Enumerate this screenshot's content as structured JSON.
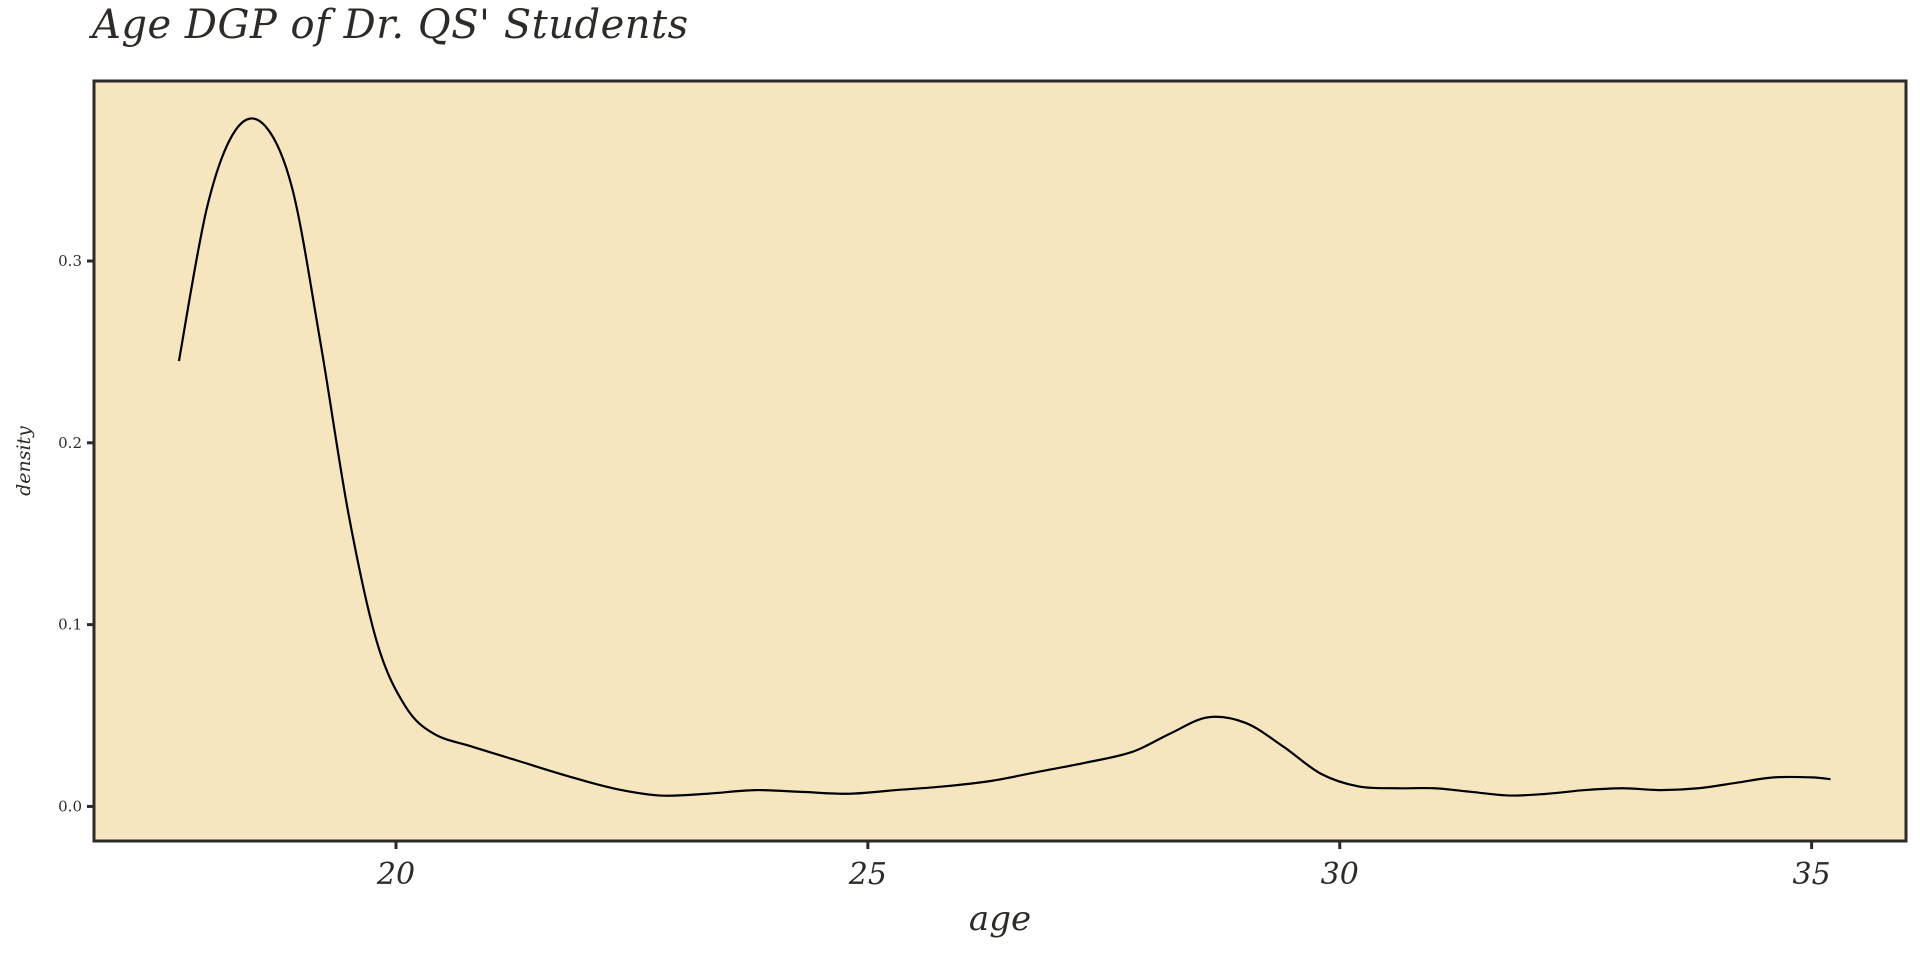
{
  "chart_data": {
    "type": "area",
    "title": "Age DGP of Dr. QS' Students",
    "xlabel": "age",
    "ylabel": "density",
    "xlim": [
      16.8,
      36.0
    ],
    "ylim": [
      -0.019,
      0.399
    ],
    "x_ticks": [
      20,
      25,
      30,
      35
    ],
    "x_tick_labels": [
      "20",
      "25",
      "30",
      "35"
    ],
    "y_ticks": [
      0.0,
      0.1,
      0.2,
      0.3
    ],
    "y_tick_labels": [
      "0.0",
      "0.1",
      "0.2",
      "0.3"
    ],
    "grid": false,
    "legend": "none",
    "colors": {
      "panel_background": "#f6e6c0",
      "panel_border": "#2e2a27",
      "line": "#000000",
      "text": "#2e2a27"
    },
    "series": [
      {
        "x": [
          17.7,
          18.0,
          18.3,
          18.6,
          18.9,
          19.2,
          19.5,
          19.8,
          20.1,
          20.4,
          20.8,
          21.3,
          21.8,
          22.3,
          22.8,
          23.3,
          23.8,
          24.3,
          24.8,
          25.3,
          25.8,
          26.3,
          26.8,
          27.3,
          27.8,
          28.2,
          28.6,
          29.0,
          29.4,
          29.8,
          30.2,
          30.6,
          31.0,
          31.4,
          31.8,
          32.2,
          32.6,
          33.0,
          33.4,
          33.8,
          34.2,
          34.6,
          35.0,
          35.2
        ],
        "y": [
          0.245,
          0.33,
          0.372,
          0.375,
          0.34,
          0.255,
          0.16,
          0.09,
          0.055,
          0.04,
          0.033,
          0.025,
          0.017,
          0.01,
          0.006,
          0.007,
          0.009,
          0.008,
          0.007,
          0.009,
          0.011,
          0.014,
          0.019,
          0.024,
          0.03,
          0.04,
          0.049,
          0.046,
          0.033,
          0.018,
          0.011,
          0.01,
          0.01,
          0.008,
          0.006,
          0.007,
          0.009,
          0.01,
          0.009,
          0.01,
          0.013,
          0.016,
          0.016,
          0.015
        ]
      }
    ]
  }
}
